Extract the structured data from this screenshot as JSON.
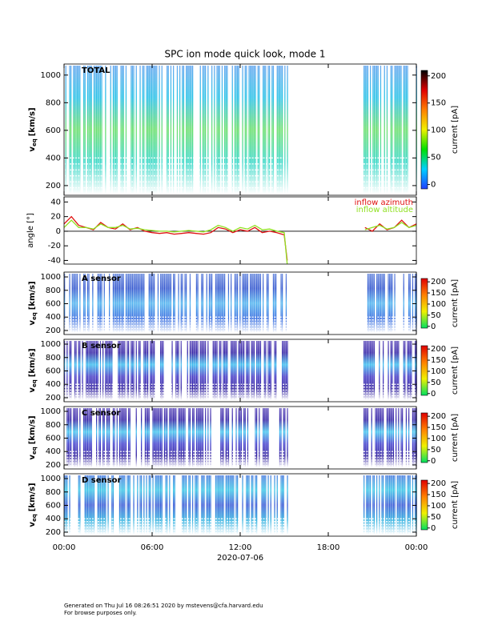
{
  "chart_data": [
    {
      "type": "spectrogram",
      "title": "SPC ion mode quick look, mode 1",
      "label": "TOTAL",
      "ylabel": {
        "main": "v",
        "sub": "eq",
        "unit": "[km/s]"
      },
      "ylim": [
        130,
        1080
      ],
      "yticks": [
        200,
        400,
        600,
        800,
        1000
      ],
      "xlim": [
        0,
        24
      ],
      "coverage": [
        [
          0,
          15.2
        ],
        [
          20.4,
          24
        ]
      ],
      "colors": [
        "#ffffff",
        "#3fd9c8",
        "#6ee070",
        "#2fc3e8",
        "#6aaaf0"
      ],
      "colorbar": {
        "lim": [
          -8,
          210
        ],
        "ticks": [
          0,
          50,
          100,
          150,
          200
        ],
        "label": "current [pA]",
        "colors": [
          "#2040ff",
          "#00d0ff",
          "#00e000",
          "#f0f000",
          "#ff8000",
          "#e00000",
          "#000000"
        ]
      }
    },
    {
      "type": "line",
      "ylabel": "angle [°]",
      "ylim": [
        -45,
        47
      ],
      "yticks": [
        -40,
        -20,
        0,
        20,
        40
      ],
      "xlim": [
        0,
        24
      ],
      "reference_line": 0,
      "x": [
        0,
        0.5,
        1,
        1.5,
        2,
        2.5,
        3,
        3.5,
        4,
        4.5,
        5,
        5.5,
        6,
        6.5,
        7,
        7.5,
        8,
        8.5,
        9,
        9.5,
        10,
        10.5,
        11,
        11.5,
        12,
        12.5,
        13,
        13.5,
        14,
        14.5,
        15,
        15.2,
        18,
        20.5,
        21,
        21.5,
        22,
        22.5,
        23,
        23.5,
        24
      ],
      "series": [
        {
          "name": "inflow azimuth",
          "color": "#e01010",
          "values": [
            10,
            20,
            8,
            5,
            2,
            12,
            5,
            3,
            10,
            2,
            5,
            0,
            -2,
            -3,
            -2,
            -4,
            -3,
            -2,
            -3,
            -4,
            -2,
            5,
            3,
            -2,
            2,
            0,
            5,
            -2,
            0,
            -2,
            -5,
            -40,
            null,
            5,
            0,
            10,
            2,
            5,
            15,
            5,
            10
          ]
        },
        {
          "name": "inflow altitude",
          "color": "#90e020",
          "values": [
            5,
            15,
            5,
            5,
            3,
            10,
            5,
            5,
            8,
            3,
            4,
            2,
            1,
            0,
            0,
            -1,
            0,
            1,
            0,
            -1,
            2,
            8,
            5,
            0,
            5,
            3,
            8,
            2,
            3,
            0,
            -2,
            -45,
            null,
            2,
            5,
            8,
            3,
            5,
            12,
            5,
            8
          ]
        }
      ]
    },
    {
      "type": "spectrogram",
      "label": "A sensor",
      "ylabel": {
        "main": "v",
        "sub": "eq",
        "unit": "[km/s]"
      },
      "ylim": [
        140,
        1072
      ],
      "yticks": [
        200,
        400,
        600,
        800,
        1000
      ],
      "xlim": [
        0,
        24
      ],
      "coverage": [
        [
          0,
          15.2
        ],
        [
          20.4,
          24
        ]
      ],
      "colors": [
        "#ffffff",
        "#3a70e0",
        "#58b8f0",
        "#3a5cd0",
        "#7090e0"
      ],
      "colorbar": {
        "lim": [
          -8,
          215
        ],
        "ticks": [
          0,
          50,
          100,
          150,
          200
        ],
        "label": "current [pA]",
        "colors": [
          "#00e060",
          "#f0f000",
          "#ff8000",
          "#e00000"
        ]
      }
    },
    {
      "type": "spectrogram",
      "label": "B sensor",
      "ylabel": {
        "main": "v",
        "sub": "eq",
        "unit": "[km/s]"
      },
      "ylim": [
        140,
        1072
      ],
      "yticks": [
        200,
        400,
        600,
        800,
        1000
      ],
      "xlim": [
        0,
        24
      ],
      "coverage": [
        [
          0,
          15.2
        ],
        [
          20.4,
          24
        ]
      ],
      "colors": [
        "#ffffff",
        "#3020a0",
        "#4a40c8",
        "#40c0f0",
        "#3828a8",
        "#6a5ac0"
      ],
      "colorbar": {
        "lim": [
          -8,
          215
        ],
        "ticks": [
          0,
          50,
          100,
          150,
          200
        ],
        "label": "current [pA]",
        "colors": [
          "#00e060",
          "#f0f000",
          "#ff8000",
          "#e00000"
        ]
      }
    },
    {
      "type": "spectrogram",
      "label": "C sensor",
      "ylabel": {
        "main": "v",
        "sub": "eq",
        "unit": "[km/s]"
      },
      "ylim": [
        140,
        1072
      ],
      "yticks": [
        200,
        400,
        600,
        800,
        1000
      ],
      "xlim": [
        0,
        24
      ],
      "coverage": [
        [
          0,
          15.2
        ],
        [
          20.4,
          24
        ]
      ],
      "colors": [
        "#ffffff",
        "#3020a0",
        "#4a48d0",
        "#48c8f0",
        "#3828a8",
        "#6a5ac0"
      ],
      "colorbar": {
        "lim": [
          -8,
          215
        ],
        "ticks": [
          0,
          50,
          100,
          150,
          200
        ],
        "label": "current [pA]",
        "colors": [
          "#00e060",
          "#f0f000",
          "#ff8000",
          "#e00000"
        ]
      }
    },
    {
      "type": "spectrogram",
      "label": "D sensor",
      "ylabel": {
        "main": "v",
        "sub": "eq",
        "unit": "[km/s]"
      },
      "ylim": [
        140,
        1072
      ],
      "yticks": [
        200,
        400,
        600,
        800,
        1000
      ],
      "xlim": [
        0,
        24
      ],
      "coverage": [
        [
          0,
          15.2
        ],
        [
          20.4,
          24
        ]
      ],
      "colors": [
        "#ffffff",
        "#30b0e0",
        "#4060d8",
        "#40c8e8",
        "#5080e0"
      ],
      "colorbar": {
        "lim": [
          -8,
          215
        ],
        "ticks": [
          0,
          50,
          100,
          150,
          200
        ],
        "label": "current [pA]",
        "colors": [
          "#00e060",
          "#f0f000",
          "#ff8000",
          "#e00000"
        ]
      },
      "xlabel": "2020-07-06",
      "xticks": [
        {
          "value": 0,
          "label": "00:00"
        },
        {
          "value": 6,
          "label": "06:00"
        },
        {
          "value": 12,
          "label": "12:00"
        },
        {
          "value": 18,
          "label": "18:00"
        },
        {
          "value": 24,
          "label": "00:00"
        }
      ]
    }
  ],
  "footer": [
    "Generated on Thu Jul 16 08:26:51 2020 by mstevens@cfa.harvard.edu",
    "For browse purposes only."
  ]
}
